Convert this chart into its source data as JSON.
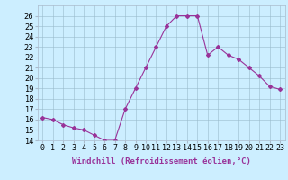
{
  "x": [
    0,
    1,
    2,
    3,
    4,
    5,
    6,
    7,
    8,
    9,
    10,
    11,
    12,
    13,
    14,
    15,
    16,
    17,
    18,
    19,
    20,
    21,
    22,
    23
  ],
  "y": [
    16.2,
    16.0,
    15.5,
    15.2,
    15.0,
    14.5,
    14.0,
    14.0,
    17.0,
    19.0,
    21.0,
    23.0,
    25.0,
    26.0,
    26.0,
    26.0,
    22.2,
    23.0,
    22.2,
    21.8,
    21.0,
    20.2,
    19.2,
    18.9
  ],
  "line_color": "#993399",
  "marker": "D",
  "markersize": 2,
  "linewidth": 0.8,
  "xlabel": "Windchill (Refroidissement éolien,°C)",
  "xlim": [
    -0.5,
    23.5
  ],
  "ylim": [
    14,
    27
  ],
  "yticks": [
    14,
    15,
    16,
    17,
    18,
    19,
    20,
    21,
    22,
    23,
    24,
    25,
    26
  ],
  "xtick_labels": [
    "0",
    "1",
    "2",
    "3",
    "4",
    "5",
    "6",
    "7",
    "8",
    "9",
    "10",
    "11",
    "12",
    "13",
    "14",
    "15",
    "16",
    "17",
    "18",
    "19",
    "20",
    "21",
    "22",
    "23"
  ],
  "bg_color": "#cceeff",
  "grid_color": "#99bbcc",
  "label_fontsize": 6.5,
  "tick_fontsize": 6
}
